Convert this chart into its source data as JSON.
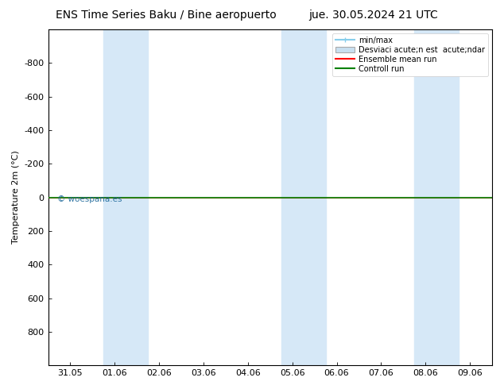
{
  "title_left": "ENS Time Series Baku / Bine aeropuerto",
  "title_right": "jue. 30.05.2024 21 UTC",
  "ylabel": "Temperature 2m (°C)",
  "watermark": "© woespana.es",
  "ylim_top": -1000,
  "ylim_bottom": 1000,
  "yticks": [
    -800,
    -600,
    -400,
    -200,
    0,
    200,
    400,
    600,
    800
  ],
  "xtick_labels": [
    "31.05",
    "01.06",
    "02.06",
    "03.06",
    "04.06",
    "05.06",
    "06.06",
    "07.06",
    "08.06",
    "09.06"
  ],
  "xtick_positions": [
    0,
    1,
    2,
    3,
    4,
    5,
    6,
    7,
    8,
    9
  ],
  "x_min": -0.5,
  "x_max": 9.5,
  "line_y": 0.0,
  "shaded_bands": [
    0.75,
    1.75,
    4.75,
    5.75,
    7.75,
    8.75
  ],
  "band_color": "#d6e8f7",
  "background_color": "#ffffff",
  "plot_bg_color": "#ffffff",
  "ensemble_mean_color": "#ff0000",
  "control_run_color": "#008000",
  "legend_item0": "min/max",
  "legend_item1": "Desviaci acute;n est  acute;ndar",
  "legend_item2": "Ensemble mean run",
  "legend_item3": "Controll run",
  "legend_color0": "#87ceeb",
  "legend_color1": "#c8dff0",
  "legend_color2": "#ff0000",
  "legend_color3": "#008000",
  "title_fontsize": 10,
  "axis_fontsize": 8,
  "tick_fontsize": 8
}
